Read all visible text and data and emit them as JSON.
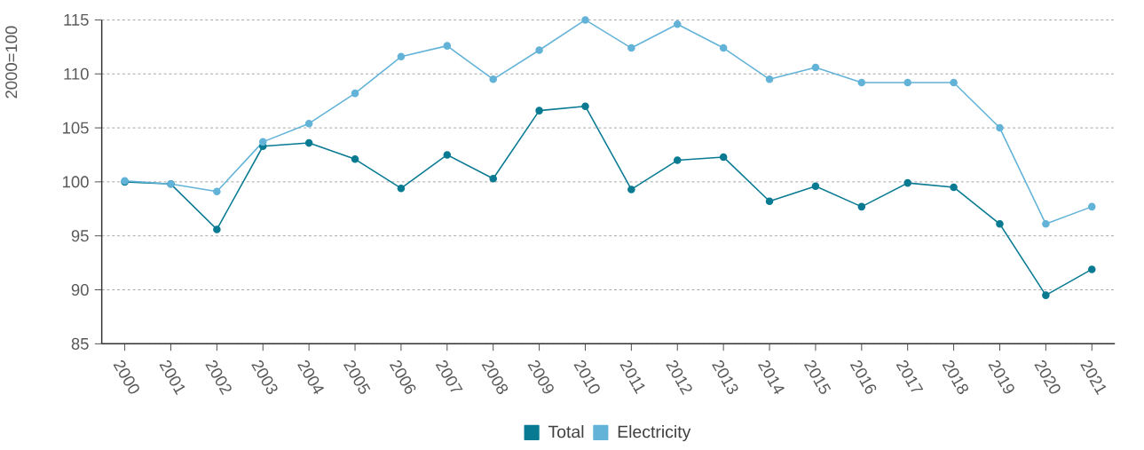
{
  "chart_data": {
    "type": "line",
    "ylabel": "2000=100",
    "categories": [
      "2000",
      "2001",
      "2002",
      "2003",
      "2004",
      "2005",
      "2006",
      "2007",
      "2008",
      "2009",
      "2010",
      "2011",
      "2012",
      "2013",
      "2014",
      "2015",
      "2016",
      "2017",
      "2018",
      "2019",
      "2020",
      "2021"
    ],
    "series": [
      {
        "name": "Total",
        "color": "#087a92",
        "values": [
          100.0,
          99.8,
          95.6,
          103.3,
          103.6,
          102.1,
          99.4,
          102.5,
          100.3,
          106.6,
          107.0,
          99.3,
          102.0,
          102.3,
          98.2,
          99.6,
          97.7,
          99.9,
          99.5,
          96.1,
          89.5,
          91.9
        ]
      },
      {
        "name": "Electricity",
        "color": "#63b3d8",
        "values": [
          100.1,
          99.8,
          99.1,
          103.7,
          105.4,
          108.2,
          111.6,
          112.6,
          109.5,
          112.2,
          115.0,
          112.4,
          114.6,
          112.4,
          109.5,
          110.6,
          109.2,
          109.2,
          109.2,
          105.0,
          96.1,
          97.7
        ]
      }
    ],
    "ylim": [
      85,
      115
    ],
    "yticks": [
      85,
      90,
      95,
      100,
      105,
      110,
      115
    ],
    "grid": "y",
    "legend": "bottom",
    "marker": "circle",
    "line_style": "solid"
  }
}
